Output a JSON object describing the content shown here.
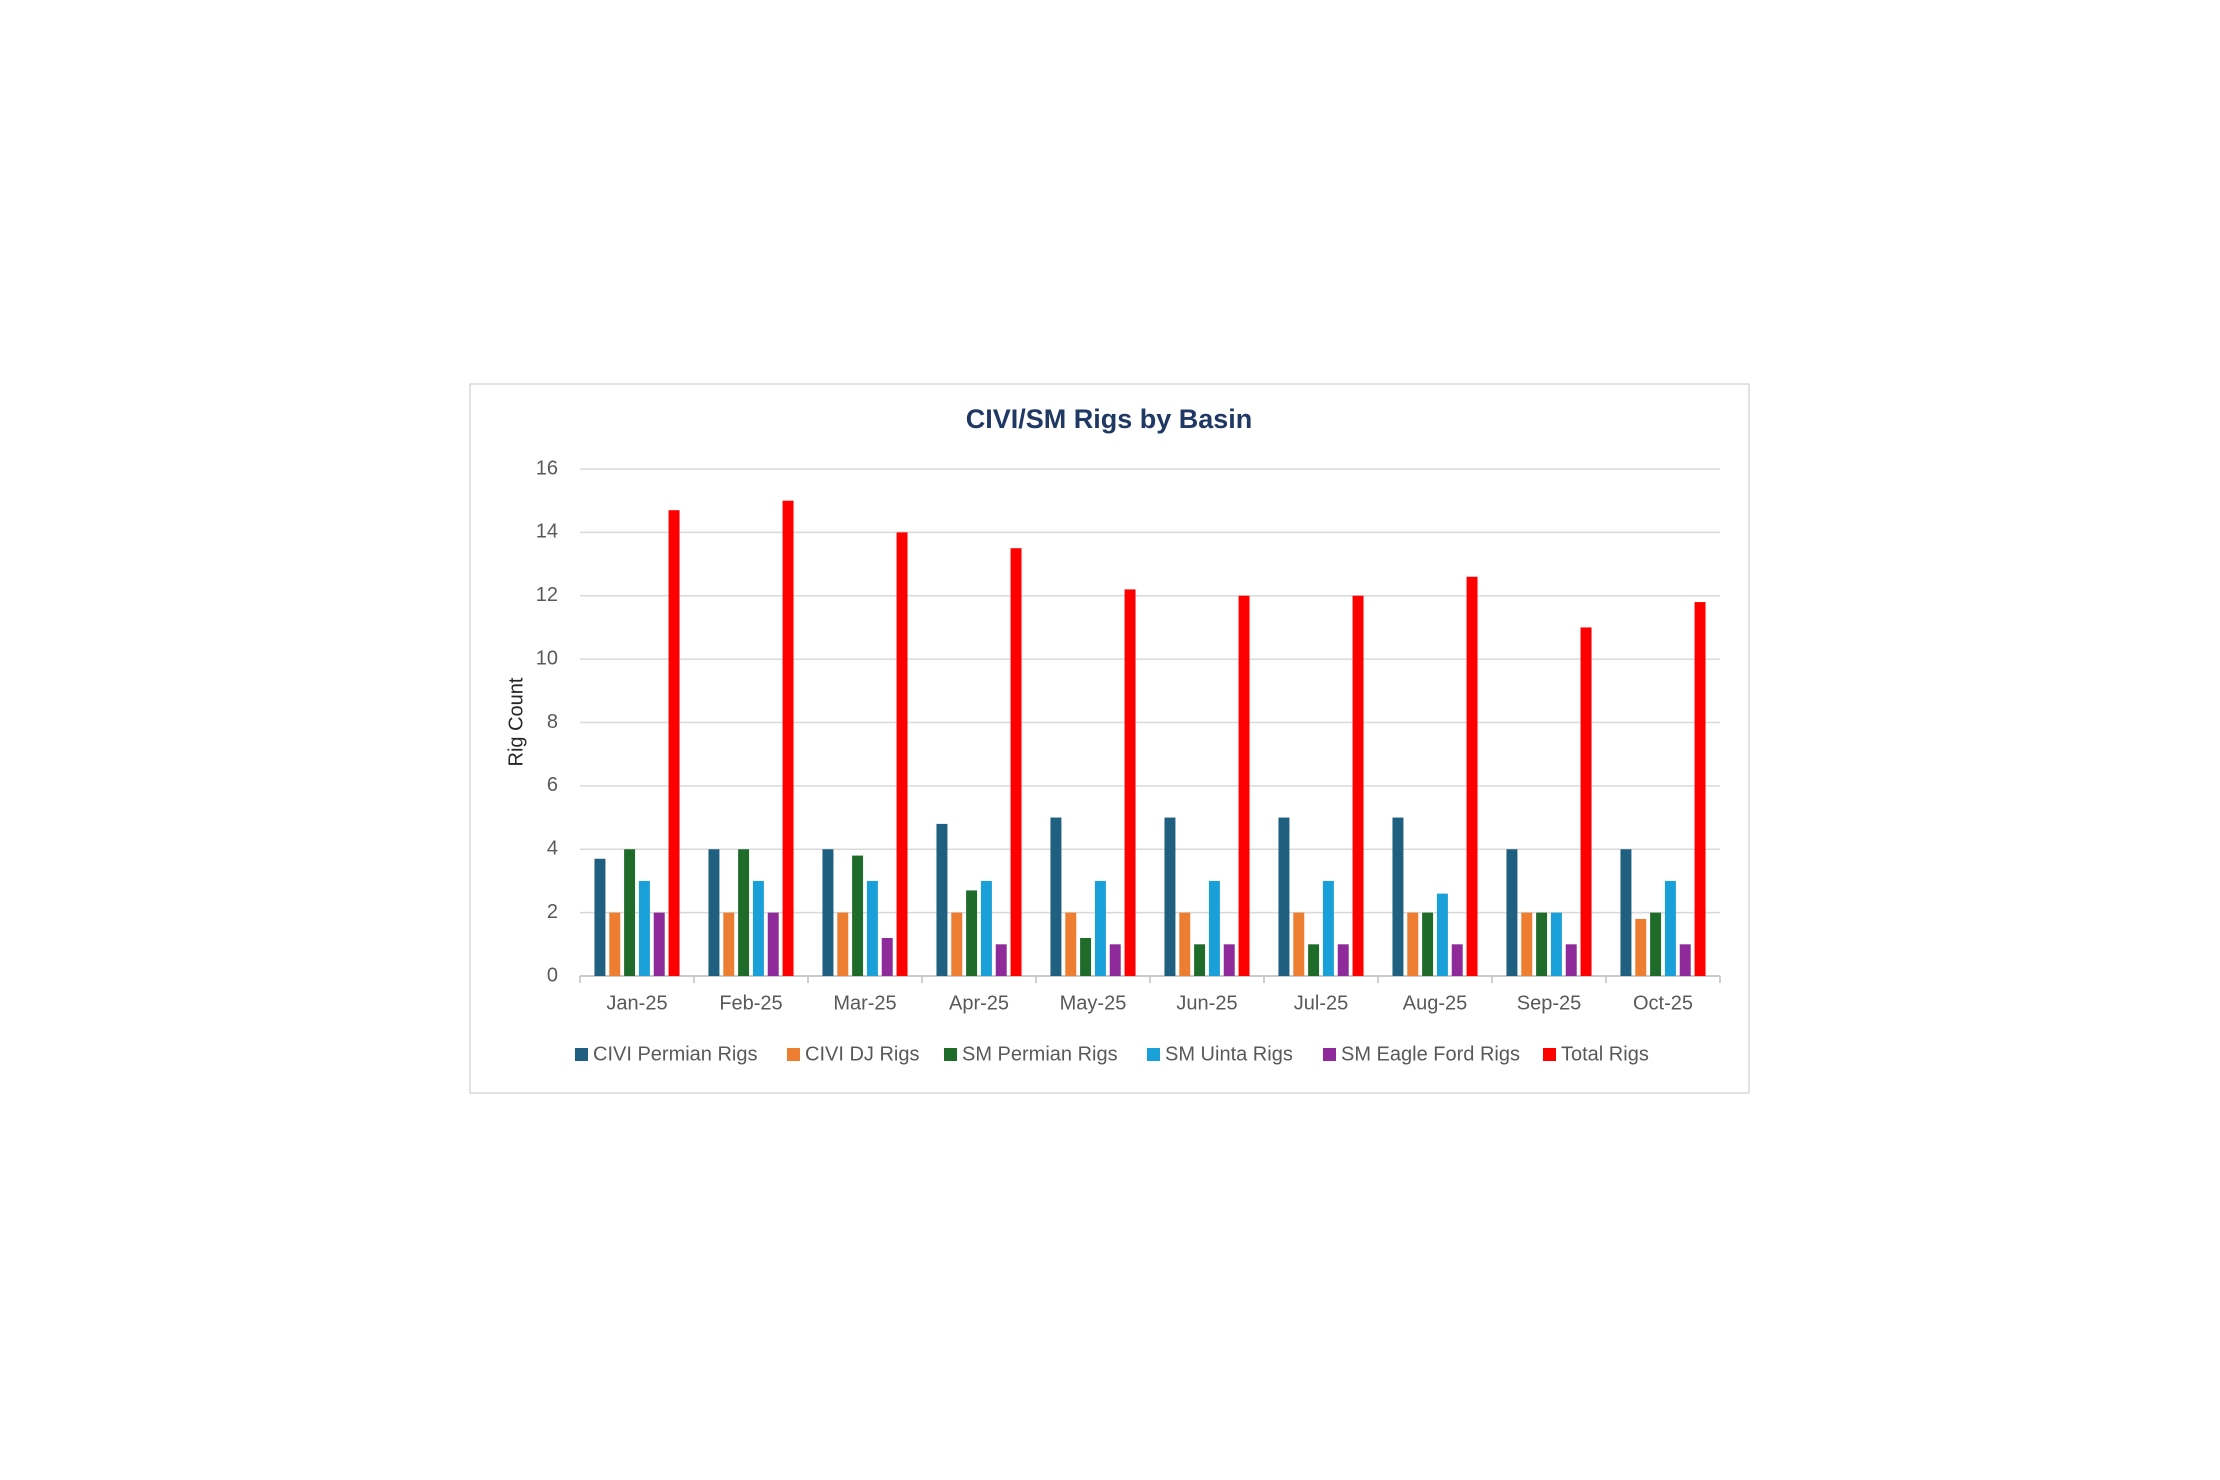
{
  "chart_data": {
    "type": "bar",
    "title": "CIVI/SM Rigs by Basin",
    "y_label": "Rig Count",
    "categories": [
      "Jan-25",
      "Feb-25",
      "Mar-25",
      "Apr-25",
      "May-25",
      "Jun-25",
      "Jul-25",
      "Aug-25",
      "Sep-25",
      "Oct-25"
    ],
    "series": [
      {
        "name": "CIVI Permian Rigs",
        "color": "#1f5f7f",
        "values": [
          3.7,
          4,
          4,
          4.8,
          5,
          5,
          5,
          5,
          4,
          4
        ]
      },
      {
        "name": "CIVI DJ Rigs",
        "color": "#ed7d31",
        "values": [
          2,
          2,
          2,
          2,
          2,
          2,
          2,
          2,
          2,
          1.8
        ]
      },
      {
        "name": "SM Permian Rigs",
        "color": "#1e6b2a",
        "values": [
          4,
          4,
          3.8,
          2.7,
          1.2,
          1,
          1,
          2,
          2,
          2
        ]
      },
      {
        "name": "SM Uinta Rigs",
        "color": "#1aa0d8",
        "values": [
          3,
          3,
          3,
          3,
          3,
          3,
          3,
          2.6,
          2,
          3
        ]
      },
      {
        "name": "SM Eagle Ford Rigs",
        "color": "#8e2a9a",
        "values": [
          2,
          2,
          1.2,
          1,
          1,
          1,
          1,
          1,
          1,
          1
        ]
      },
      {
        "name": "Total Rigs",
        "color": "#ff0000",
        "values": [
          14.7,
          15,
          14,
          13.5,
          12.2,
          12,
          12,
          12.6,
          11,
          11.8
        ]
      }
    ],
    "ylim": [
      0,
      16
    ],
    "yticks": [
      0,
      2,
      4,
      6,
      8,
      10,
      12,
      14,
      16
    ],
    "grid": true,
    "legend": "bottom"
  }
}
